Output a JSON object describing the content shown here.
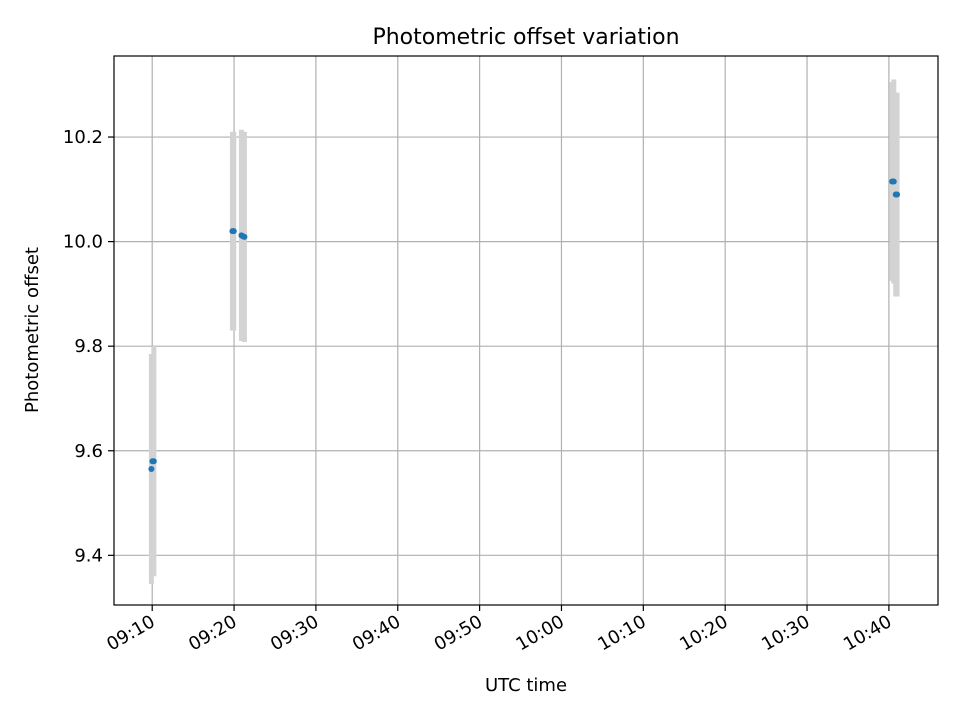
{
  "chart_data": {
    "type": "scatter",
    "title": "Photometric offset variation",
    "xlabel": "UTC time",
    "ylabel": "Photometric offset",
    "x_ticks": [
      "09:10",
      "09:20",
      "09:30",
      "09:40",
      "09:50",
      "10:00",
      "10:10",
      "10:20",
      "10:30",
      "10:40"
    ],
    "y_ticks": [
      "9.4",
      "9.6",
      "9.8",
      "10.0",
      "10.2"
    ],
    "xlim": [
      "09:05:20",
      "10:46:00"
    ],
    "ylim": [
      9.305,
      10.355
    ],
    "grid": true,
    "colors": {
      "points": "#1f77b4",
      "error_bars": "#d3d3d3",
      "grid": "#b0b0b0"
    },
    "series": [
      {
        "points": [
          {
            "x": "09:09:54",
            "y": 9.565,
            "err": 0.22
          },
          {
            "x": "09:10:02",
            "y": 9.58,
            "err": 0.205
          },
          {
            "x": "09:10:12",
            "y": 9.58,
            "err": 0.22
          },
          {
            "x": "09:19:48",
            "y": 10.02,
            "err": 0.19
          },
          {
            "x": "09:19:58",
            "y": 10.02,
            "err": 0.19
          },
          {
            "x": "09:20:54",
            "y": 10.012,
            "err": 0.202
          },
          {
            "x": "09:21:06",
            "y": 10.01,
            "err": 0.2
          },
          {
            "x": "09:21:16",
            "y": 10.009,
            "err": 0.201
          },
          {
            "x": "10:40:24",
            "y": 10.115,
            "err": 0.19
          },
          {
            "x": "10:40:36",
            "y": 10.115,
            "err": 0.195
          },
          {
            "x": "10:40:50",
            "y": 10.09,
            "err": 0.195
          },
          {
            "x": "10:41:00",
            "y": 10.09,
            "err": 0.195
          }
        ]
      }
    ]
  }
}
